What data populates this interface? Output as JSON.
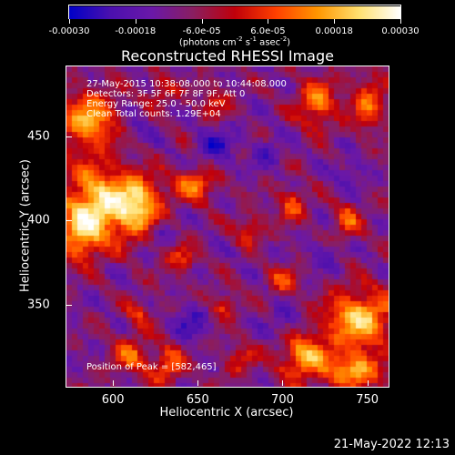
{
  "chart_data": {
    "type": "heatmap",
    "title": "Reconstructed RHESSI Image",
    "xlabel": "Heliocentric X (arcsec)",
    "ylabel": "Heliocentric Y (arcsec)",
    "xlim": [
      572,
      762
    ],
    "ylim": [
      302,
      492
    ],
    "xticks": [
      "600",
      "650",
      "700",
      "750"
    ],
    "xtick_values": [
      600,
      650,
      700,
      750
    ],
    "yticks": [
      "350",
      "400",
      "450"
    ],
    "ytick_values": [
      350,
      400,
      450
    ],
    "colorbar": {
      "ticks": [
        "-0.00030",
        "-0.00018",
        "-6.0e-05",
        "6.0e-05",
        "0.00018",
        "0.00030"
      ],
      "tick_values": [
        -0.0003,
        -0.00018,
        -6e-05,
        6e-05,
        0.00018,
        0.0003
      ],
      "range": [
        -0.0003,
        0.0003
      ],
      "unit_label": "(photons cm",
      "unit_sup1": "-2",
      "unit_mid": " s",
      "unit_sup2": "-1",
      "unit_mid2": " asec",
      "unit_sup3": "-2",
      "unit_end": ")",
      "colormap": [
        "#0000c8",
        "#4b10ae",
        "#6a18a8",
        "#8a1e60",
        "#c0000a",
        "#ff4000",
        "#ff9600",
        "#ffe070",
        "#ffffff"
      ]
    },
    "annotations": [
      "27-May-2015 10:38:08.000 to 10:44:08.000",
      "Detectors: 3F 5F 6F 7F 8F 9F, Att 0",
      "Energy Range: 25.0 - 50.0 keV",
      "Clean    Total counts: 1.29E+04"
    ],
    "peak_label": "Position of Peak = [582,465]",
    "peak": [
      582,
      465
    ],
    "hotspots": [
      {
        "x": 590,
        "y": 410,
        "amp": 1.0,
        "sx": 14,
        "sy": 16
      },
      {
        "x": 615,
        "y": 410,
        "amp": 0.9,
        "sx": 10,
        "sy": 12
      },
      {
        "x": 585,
        "y": 460,
        "amp": 0.85,
        "sx": 12,
        "sy": 12
      },
      {
        "x": 580,
        "y": 390,
        "amp": 0.6,
        "sx": 8,
        "sy": 10
      },
      {
        "x": 745,
        "y": 342,
        "amp": 0.95,
        "sx": 14,
        "sy": 12
      },
      {
        "x": 712,
        "y": 320,
        "amp": 0.8,
        "sx": 10,
        "sy": 10
      },
      {
        "x": 742,
        "y": 312,
        "amp": 0.8,
        "sx": 12,
        "sy": 8
      },
      {
        "x": 648,
        "y": 422,
        "amp": 0.7,
        "sx": 8,
        "sy": 7
      },
      {
        "x": 720,
        "y": 470,
        "amp": 0.7,
        "sx": 8,
        "sy": 10
      },
      {
        "x": 750,
        "y": 470,
        "amp": 0.6,
        "sx": 7,
        "sy": 12
      },
      {
        "x": 610,
        "y": 320,
        "amp": 0.6,
        "sx": 7,
        "sy": 8
      },
      {
        "x": 632,
        "y": 315,
        "amp": 0.6,
        "sx": 7,
        "sy": 8
      },
      {
        "x": 705,
        "y": 410,
        "amp": 0.55,
        "sx": 6,
        "sy": 7
      },
      {
        "x": 680,
        "y": 395,
        "amp": 0.5,
        "sx": 6,
        "sy": 6
      },
      {
        "x": 640,
        "y": 378,
        "amp": 0.5,
        "sx": 6,
        "sy": 6
      },
      {
        "x": 665,
        "y": 350,
        "amp": 0.45,
        "sx": 6,
        "sy": 6
      },
      {
        "x": 700,
        "y": 365,
        "amp": 0.5,
        "sx": 6,
        "sy": 6
      },
      {
        "x": 660,
        "y": 470,
        "amp": 0.45,
        "sx": 6,
        "sy": 6
      },
      {
        "x": 615,
        "y": 345,
        "amp": 0.4,
        "sx": 6,
        "sy": 6
      },
      {
        "x": 675,
        "y": 318,
        "amp": 0.45,
        "sx": 6,
        "sy": 6
      },
      {
        "x": 628,
        "y": 478,
        "amp": 0.45,
        "sx": 6,
        "sy": 6
      },
      {
        "x": 738,
        "y": 400,
        "amp": 0.5,
        "sx": 6,
        "sy": 8
      }
    ],
    "coldspots": [
      {
        "x": 660,
        "y": 445,
        "amp": 0.8,
        "sx": 8,
        "sy": 8
      },
      {
        "x": 645,
        "y": 340,
        "amp": 0.8,
        "sx": 7,
        "sy": 7
      },
      {
        "x": 700,
        "y": 340,
        "amp": 0.7,
        "sx": 7,
        "sy": 7
      },
      {
        "x": 725,
        "y": 380,
        "amp": 0.6,
        "sx": 6,
        "sy": 6
      },
      {
        "x": 628,
        "y": 395,
        "amp": 0.6,
        "sx": 6,
        "sy": 6
      },
      {
        "x": 690,
        "y": 440,
        "amp": 0.6,
        "sx": 6,
        "sy": 6
      },
      {
        "x": 740,
        "y": 430,
        "amp": 0.6,
        "sx": 6,
        "sy": 6
      },
      {
        "x": 612,
        "y": 455,
        "amp": 0.5,
        "sx": 6,
        "sy": 6
      }
    ]
  },
  "datestamp": "21-May-2022 12:13"
}
